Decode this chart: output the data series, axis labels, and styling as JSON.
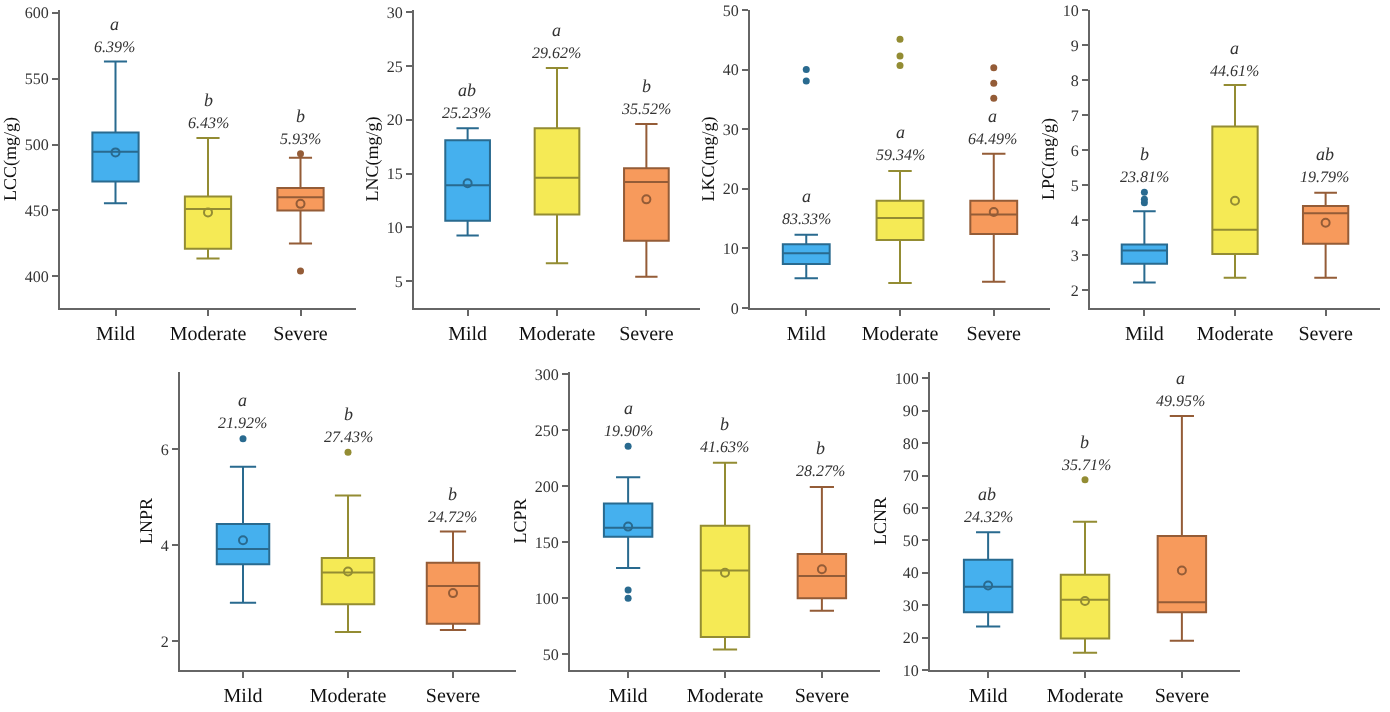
{
  "chart_data": [
    {
      "type": "box",
      "ylabel": "LCC(mg/g)",
      "categories": [
        "Mild",
        "Moderate",
        "Severe"
      ],
      "colors": [
        "#45b0ee",
        "#f5ea55",
        "#f79a5c"
      ],
      "ylim": [
        376,
        602
      ],
      "yticks": [
        400,
        450,
        500,
        550,
        600
      ],
      "grid": false,
      "boxes": [
        {
          "low": 455.5,
          "q1": 472,
          "median": 494.5,
          "q3": 509,
          "high": 563,
          "mean": 494
        },
        {
          "low": 413.5,
          "q1": 421,
          "median": 451,
          "q3": 460.5,
          "high": 505,
          "mean": 448.5
        },
        {
          "low": 425,
          "q1": 450,
          "median": 460,
          "q3": 467,
          "high": 490,
          "mean": 455,
          "outliers": [
            493,
            404
          ]
        }
      ],
      "annotations": [
        "a",
        "6.39%",
        "b",
        "6.43%",
        "b",
        "5.93%"
      ]
    },
    {
      "type": "box",
      "ylabel": "LNC(mg/g)",
      "categories": [
        "Mild",
        "Moderate",
        "Severe"
      ],
      "colors": [
        "#45b0ee",
        "#f5ea55",
        "#f79a5c"
      ],
      "ylim": [
        2.5,
        30.2
      ],
      "yticks": [
        5,
        10,
        15,
        20,
        25,
        30
      ],
      "grid": false,
      "boxes": [
        {
          "low": 9.25,
          "q1": 10.6,
          "median": 13.9,
          "q3": 18.1,
          "high": 19.2,
          "mean": 14.1
        },
        {
          "low": 6.65,
          "q1": 11.2,
          "median": 14.6,
          "q3": 19.2,
          "high": 24.8
        },
        {
          "low": 5.4,
          "q1": 8.75,
          "median": 14.2,
          "q3": 15.5,
          "high": 19.6,
          "mean": 12.6
        }
      ],
      "annotations": [
        "ab",
        "25.23%",
        "a",
        "29.62%",
        "b",
        "35.52%"
      ]
    },
    {
      "type": "box",
      "ylabel": "LKC(mg/g)",
      "categories": [
        "Mild",
        "Moderate",
        "Severe"
      ],
      "colors": [
        "#45b0ee",
        "#f5ea55",
        "#f79a5c"
      ],
      "ylim": [
        0,
        50
      ],
      "yticks": [
        0,
        10,
        20,
        30,
        40,
        50
      ],
      "grid": false,
      "boxes": [
        {
          "low": 5,
          "q1": 7.4,
          "median": 9.2,
          "q3": 10.7,
          "high": 12.3,
          "outliers": [
            40,
            38.1
          ]
        },
        {
          "low": 4.2,
          "q1": 11.4,
          "median": 15.1,
          "q3": 18,
          "high": 23,
          "outliers": [
            45.1,
            42.3,
            40.7
          ]
        },
        {
          "low": 4.4,
          "q1": 12.4,
          "median": 15.7,
          "q3": 18,
          "high": 25.9,
          "mean": 16.1,
          "outliers": [
            40.3,
            37.7,
            35.2
          ]
        }
      ],
      "annotations": [
        "a",
        "83.33%",
        "a",
        "59.34%",
        "a",
        "64.49%"
      ]
    },
    {
      "type": "box",
      "ylabel": "LPC(mg/g)",
      "categories": [
        "Mild",
        "Moderate",
        "Severe"
      ],
      "colors": [
        "#45b0ee",
        "#f5ea55",
        "#f79a5c"
      ],
      "ylim": [
        1.5,
        10
      ],
      "yticks": [
        2,
        3,
        4,
        5,
        6,
        7,
        8,
        9,
        10
      ],
      "grid": false,
      "boxes": [
        {
          "low": 2.23,
          "q1": 2.76,
          "median": 3.14,
          "q3": 3.31,
          "high": 4.26,
          "outliers": [
            4.8,
            4.6,
            4.5
          ]
        },
        {
          "low": 2.36,
          "q1": 3.04,
          "median": 3.73,
          "q3": 6.68,
          "high": 7.86,
          "mean": 4.56
        },
        {
          "low": 2.36,
          "q1": 3.33,
          "median": 4.2,
          "q3": 4.41,
          "high": 4.79,
          "mean": 3.93
        }
      ],
      "annotations": [
        "b",
        "23.81%",
        "a",
        "44.61%",
        "ab",
        "19.79%"
      ]
    },
    {
      "type": "box",
      "ylabel": "LNPR",
      "categories": [
        "Mild",
        "Moderate",
        "Severe"
      ],
      "colors": [
        "#45b0ee",
        "#f5ea55",
        "#f79a5c"
      ],
      "ylim": [
        1.4,
        7.6
      ],
      "yticks": [
        2,
        4,
        6
      ],
      "grid": false,
      "boxes": [
        {
          "low": 2.8,
          "q1": 3.6,
          "median": 3.92,
          "q3": 4.44,
          "high": 5.63,
          "mean": 4.1,
          "outliers": [
            6.21
          ]
        },
        {
          "low": 2.19,
          "q1": 2.77,
          "median": 3.43,
          "q3": 3.73,
          "high": 5.03,
          "mean": 3.45,
          "outliers": [
            5.93
          ]
        },
        {
          "low": 2.23,
          "q1": 2.36,
          "median": 3.15,
          "q3": 3.63,
          "high": 4.28,
          "mean": 3
        }
      ],
      "annotations": [
        "a",
        "21.92%",
        "b",
        "27.43%",
        "b",
        "24.72%"
      ]
    },
    {
      "type": "box",
      "ylabel": "LCPR",
      "categories": [
        "Mild",
        "Moderate",
        "Severe"
      ],
      "colors": [
        "#45b0ee",
        "#f5ea55",
        "#f79a5c"
      ],
      "ylim": [
        36,
        302
      ],
      "yticks": [
        50,
        100,
        150,
        200,
        250,
        300
      ],
      "grid": false,
      "boxes": [
        {
          "low": 127,
          "q1": 155,
          "median": 163,
          "q3": 184.6,
          "high": 208,
          "mean": 164,
          "outliers": [
            235.8,
            107.4,
            100
          ]
        },
        {
          "low": 54.3,
          "q1": 65.4,
          "median": 124.7,
          "q3": 164.8,
          "high": 221,
          "mean": 122.8
        },
        {
          "low": 88.9,
          "q1": 100,
          "median": 119.8,
          "q3": 139.5,
          "high": 199.4,
          "mean": 126
        }
      ],
      "annotations": [
        "a",
        "19.90%",
        "b",
        "41.63%",
        "b",
        "28.27%"
      ]
    },
    {
      "type": "box",
      "ylabel": "LCNR",
      "categories": [
        "Mild",
        "Moderate",
        "Severe"
      ],
      "colors": [
        "#45b0ee",
        "#f5ea55",
        "#f79a5c"
      ],
      "ylim": [
        10,
        102
      ],
      "yticks": [
        10,
        20,
        30,
        40,
        50,
        60,
        70,
        80,
        90,
        100
      ],
      "grid": false,
      "boxes": [
        {
          "low": 23.4,
          "q1": 27.8,
          "median": 35.7,
          "q3": 44,
          "high": 52.5,
          "mean": 36.1
        },
        {
          "low": 15.3,
          "q1": 19.7,
          "median": 31.7,
          "q3": 39.4,
          "high": 55.8,
          "mean": 31.3,
          "outliers": [
            68.7
          ]
        },
        {
          "low": 19,
          "q1": 27.8,
          "median": 30.9,
          "q3": 51.4,
          "high": 88.4,
          "mean": 40.7
        }
      ],
      "annotations": [
        "ab",
        "24.32%",
        "b",
        "35.71%",
        "a",
        "49.95%"
      ]
    }
  ]
}
